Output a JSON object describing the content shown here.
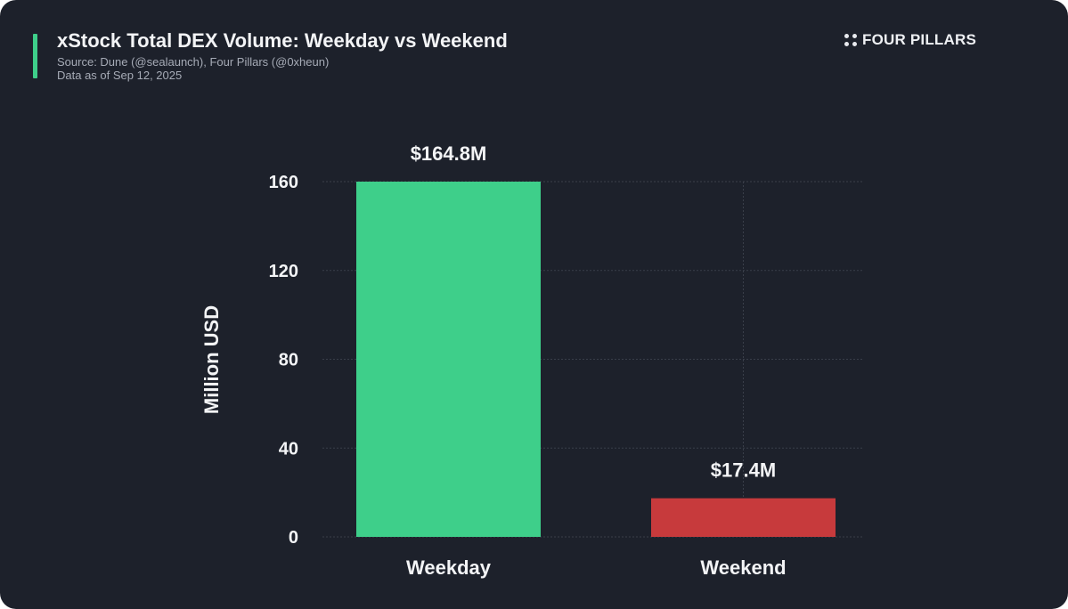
{
  "header": {
    "title": "xStock Total DEX Volume: Weekday vs Weekend",
    "source": "Source: Dune (@sealaunch), Four Pillars (@0xheun)",
    "date": "Data as of Sep 12, 2025"
  },
  "brand": {
    "name": "FOUR PILLARS",
    "icon": "four-dots-icon"
  },
  "colors": {
    "background": "#1d212b",
    "accent": "#3ecf8a",
    "weekday_bar": "#3ecf8a",
    "weekend_bar": "#c73a3c",
    "grid": "#3a3f4a"
  },
  "chart_data": {
    "type": "bar",
    "title": "xStock Total DEX Volume: Weekday vs Weekend",
    "xlabel": "",
    "ylabel": "Million USD",
    "categories": [
      "Weekday",
      "Weekend"
    ],
    "values": [
      164.8,
      17.4
    ],
    "data_labels": [
      "$164.8M",
      "$17.4M"
    ],
    "bar_colors": [
      "#3ecf8a",
      "#c73a3c"
    ],
    "ylim": [
      0,
      160
    ],
    "yticks": [
      0,
      40,
      80,
      120,
      160
    ],
    "ytick_labels": [
      "0",
      "40",
      "80",
      "120",
      "160"
    ],
    "grid": true,
    "grid_style": "dotted"
  }
}
